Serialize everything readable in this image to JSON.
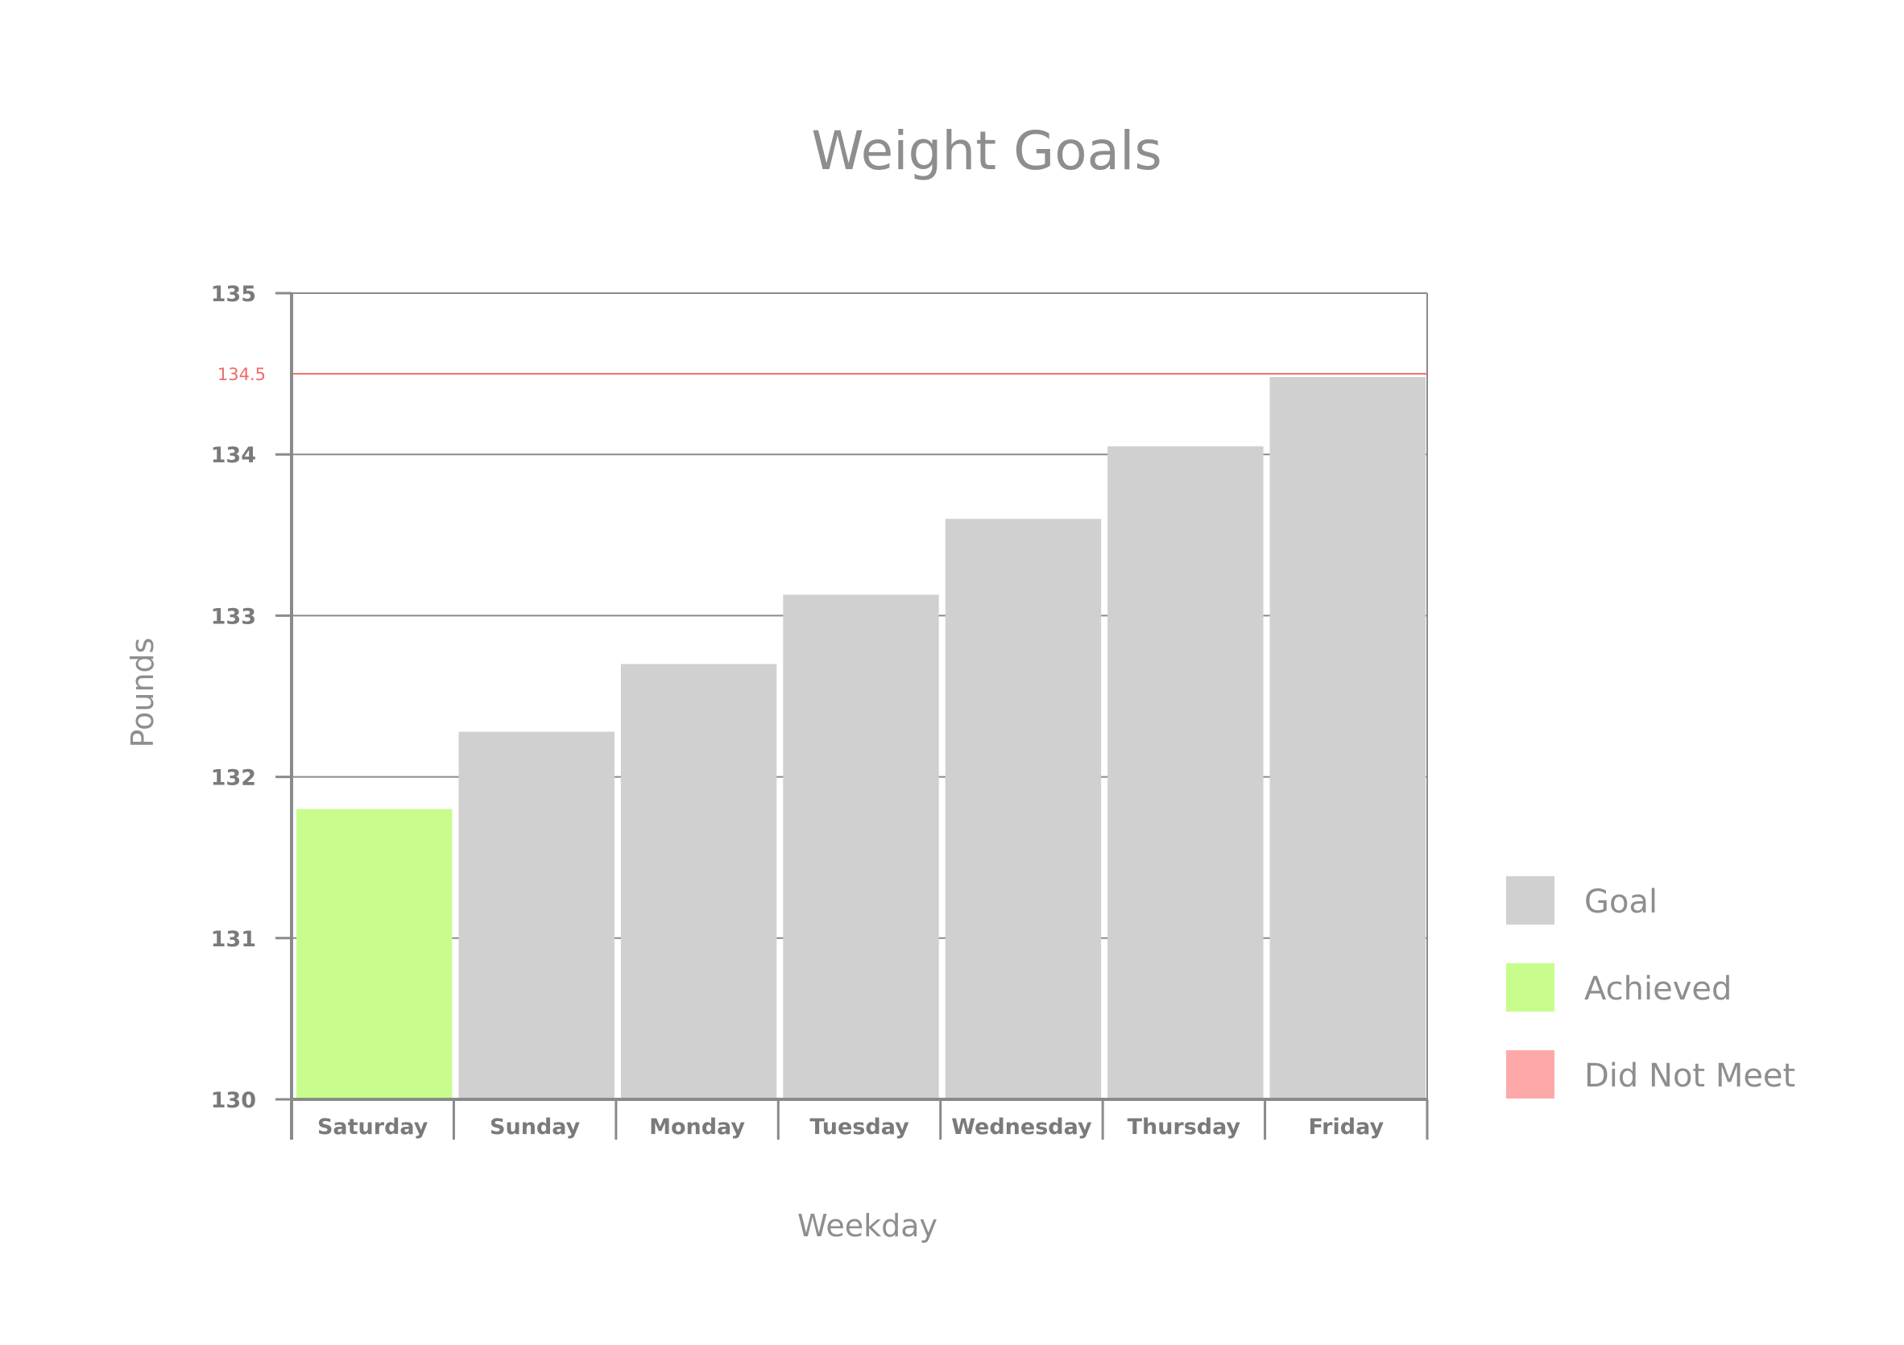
{
  "chart_data": {
    "type": "bar",
    "title": "Weight Goals",
    "xlabel": "Weekday",
    "ylabel": "Pounds",
    "categories": [
      "Saturday",
      "Sunday",
      "Monday",
      "Tuesday",
      "Wednesday",
      "Thursday",
      "Friday"
    ],
    "series": [
      {
        "name": "Goal",
        "values": [
          131.8,
          132.28,
          132.7,
          133.13,
          133.6,
          134.05,
          134.48
        ],
        "status": [
          "Achieved",
          "Goal",
          "Goal",
          "Goal",
          "Goal",
          "Goal",
          "Goal"
        ]
      }
    ],
    "ylim": [
      130,
      135
    ],
    "yticks": [
      "130",
      "131",
      "132",
      "133",
      "134",
      "135"
    ],
    "reference_line": {
      "value": 134.5,
      "label": "134.5",
      "color": "#f06a6a"
    },
    "grid": true,
    "legend": {
      "placement": "right",
      "items": [
        {
          "label": "Goal",
          "color": "#d0d0d0"
        },
        {
          "label": "Achieved",
          "color": "#c8fd8d"
        },
        {
          "label": "Did Not Meet",
          "color": "#fda9a9"
        }
      ]
    },
    "colors": {
      "Goal": "#d0d0d0",
      "Achieved": "#c8fd8d",
      "Did Not Meet": "#fda9a9"
    }
  }
}
